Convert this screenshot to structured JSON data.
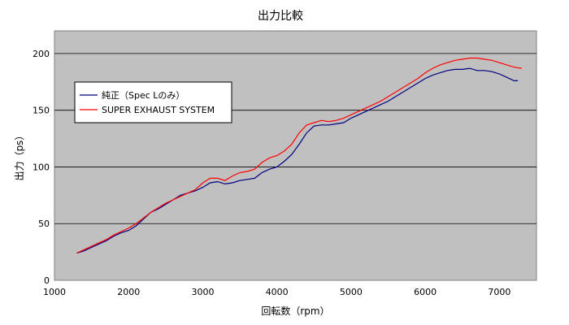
{
  "chart_data": {
    "type": "line",
    "title": "出力比較",
    "xlabel": "回転数（rpm）",
    "ylabel": "出力（ps）",
    "xlim": [
      1000,
      7500
    ],
    "ylim": [
      0,
      220
    ],
    "xticks": [
      1000,
      2000,
      3000,
      4000,
      5000,
      6000,
      7000
    ],
    "yticks": [
      0,
      50,
      100,
      150,
      200
    ],
    "grid": "horizontal",
    "plot_background": "#c0c0c0",
    "legend_position": "upper-left",
    "series": [
      {
        "name": "純正（Spec Lのみ）",
        "color": "#000080",
        "x": [
          1300,
          1400,
          1500,
          1600,
          1700,
          1800,
          1900,
          2000,
          2100,
          2200,
          2300,
          2400,
          2500,
          2600,
          2700,
          2800,
          2900,
          3000,
          3100,
          3200,
          3300,
          3400,
          3500,
          3600,
          3700,
          3800,
          3900,
          4000,
          4100,
          4200,
          4300,
          4400,
          4500,
          4600,
          4700,
          4800,
          4900,
          5000,
          5100,
          5200,
          5300,
          5400,
          5500,
          5600,
          5700,
          5800,
          5900,
          6000,
          6100,
          6200,
          6300,
          6400,
          6500,
          6600,
          6700,
          6800,
          6900,
          7000,
          7100,
          7200,
          7250
        ],
        "y": [
          24,
          26,
          29,
          32,
          35,
          39,
          42,
          44,
          48,
          54,
          60,
          63,
          67,
          71,
          75,
          77,
          79,
          82,
          86,
          87,
          85,
          86,
          88,
          89,
          90,
          95,
          98,
          100,
          105,
          111,
          120,
          130,
          136,
          137,
          137,
          138,
          139,
          143,
          146,
          149,
          152,
          155,
          158,
          162,
          166,
          170,
          174,
          178,
          181,
          183,
          185,
          186,
          186,
          187,
          185,
          185,
          184,
          182,
          179,
          176,
          176
        ]
      },
      {
        "name": "SUPER EXHAUST SYSTEM",
        "color": "#ff0000",
        "x": [
          1300,
          1400,
          1500,
          1600,
          1700,
          1800,
          1900,
          2000,
          2100,
          2200,
          2300,
          2400,
          2500,
          2600,
          2700,
          2800,
          2900,
          3000,
          3100,
          3200,
          3300,
          3400,
          3500,
          3600,
          3700,
          3800,
          3900,
          4000,
          4100,
          4200,
          4300,
          4400,
          4500,
          4600,
          4700,
          4800,
          4900,
          5000,
          5100,
          5200,
          5300,
          5400,
          5500,
          5600,
          5700,
          5800,
          5900,
          6000,
          6100,
          6200,
          6300,
          6400,
          6500,
          6600,
          6700,
          6800,
          6900,
          7000,
          7100,
          7200,
          7300
        ],
        "y": [
          24,
          27,
          30,
          33,
          36,
          40,
          43,
          46,
          50,
          55,
          60,
          64,
          68,
          71,
          74,
          77,
          80,
          86,
          90,
          90,
          88,
          92,
          95,
          96,
          98,
          104,
          108,
          110,
          114,
          120,
          130,
          137,
          139,
          141,
          140,
          141,
          143,
          146,
          149,
          152,
          155,
          158,
          162,
          166,
          170,
          174,
          178,
          183,
          187,
          190,
          192,
          194,
          195,
          196,
          196,
          195,
          194,
          192,
          190,
          188,
          187
        ]
      }
    ]
  }
}
